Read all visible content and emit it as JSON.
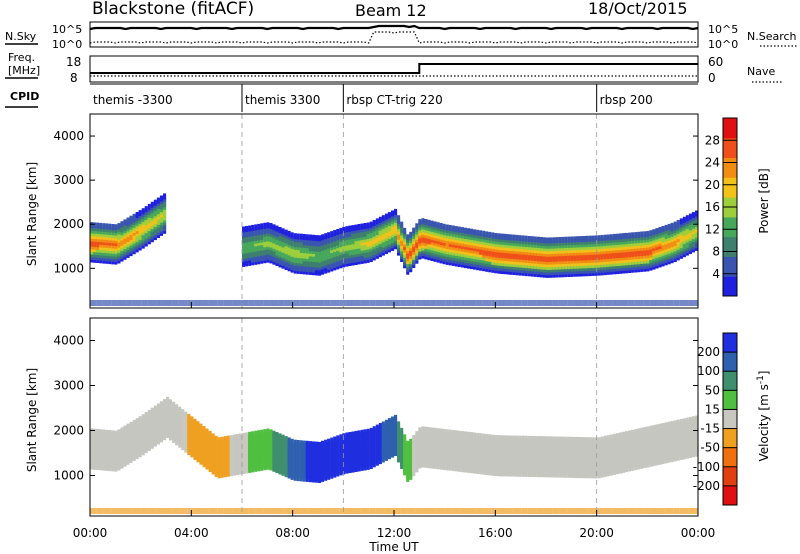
{
  "header": {
    "station": "Blackstone (fitACF)",
    "beam": "Beam 12",
    "date": "18/Oct/2015"
  },
  "noise_panel": {
    "left_label": "N.Sky",
    "right_label": "N.Search",
    "left_ticks": [
      "10^5",
      "10^0"
    ],
    "right_ticks": [
      "10^5",
      "10^0"
    ]
  },
  "freq_panel": {
    "left_label_line1": "Freq.",
    "left_label_line2": "[MHz]",
    "right_label": "Nave",
    "left_ticks": [
      "18",
      "8"
    ],
    "right_ticks": [
      "60",
      "0"
    ]
  },
  "cpid_panel": {
    "label": "CPID",
    "segments": [
      {
        "label": "themis -3300",
        "start_hour": 0
      },
      {
        "label": "themis 3300",
        "start_hour": 6
      },
      {
        "label": "rbsp CT-trig 220",
        "start_hour": 10
      },
      {
        "label": "rbsp 200",
        "start_hour": 20
      }
    ]
  },
  "x_axis": {
    "label": "Time UT",
    "ticks": [
      "00:00",
      "04:00",
      "08:00",
      "12:00",
      "16:00",
      "20:00",
      "00:00"
    ]
  },
  "colors": {
    "power_scale": [
      "#1f1fe0",
      "#3a55b0",
      "#3e7f6e",
      "#47a85c",
      "#9dcf3c",
      "#f2c21b",
      "#f28d14",
      "#ef4f1a",
      "#e01010"
    ],
    "velocity_scale": [
      "#1f2fe0",
      "#2f60b0",
      "#3f8f6f",
      "#4fbf3f",
      "#c8c8c0",
      "#f0a020",
      "#f07010",
      "#e04010",
      "#e01010"
    ],
    "ground_scatter": "#c6c6c0"
  },
  "chart_data": [
    {
      "type": "heatmap",
      "title": "",
      "xlabel": "Time UT",
      "ylabel": "Slant Range [km]",
      "xlim": [
        0,
        24
      ],
      "ylim": [
        100,
        4500
      ],
      "yticks": [
        1000,
        2000,
        3000,
        4000
      ],
      "grid": false,
      "colorbar": {
        "label": "Power [dB]",
        "range": [
          0,
          32
        ],
        "ticks": [
          4,
          8,
          12,
          16,
          20,
          24,
          28
        ]
      },
      "echo_band": {
        "x_hours": [
          0,
          1,
          2,
          3,
          4,
          5,
          6,
          7,
          8,
          9,
          10,
          11,
          12,
          12.5,
          13,
          14,
          16,
          18,
          20,
          22,
          23,
          24
        ],
        "center_km": [
          1600,
          1550,
          1900,
          2300,
          null,
          null,
          1500,
          1600,
          1350,
          1300,
          1500,
          1600,
          1900,
          1300,
          1700,
          1550,
          1350,
          1250,
          1300,
          1400,
          1600,
          1900
        ],
        "peak_power_db": [
          28,
          26,
          22,
          18,
          null,
          null,
          14,
          16,
          18,
          14,
          16,
          20,
          22,
          28,
          28,
          26,
          28,
          28,
          28,
          28,
          24,
          18
        ]
      },
      "dashed_markers_hours": [
        6,
        10,
        20
      ]
    },
    {
      "type": "heatmap",
      "title": "",
      "xlabel": "Time UT",
      "ylabel": "Slant Range [km]",
      "xlim": [
        0,
        24
      ],
      "ylim": [
        100,
        4500
      ],
      "yticks": [
        1000,
        2000,
        3000,
        4000
      ],
      "grid": false,
      "colorbar": {
        "label": "Velocity [m s^-1]",
        "tick_labels": [
          "200",
          "100",
          "50",
          "15",
          "-15",
          "-50",
          "-100",
          "-200"
        ]
      },
      "velocity_band": {
        "x_hours": [
          0,
          1,
          2,
          3,
          5,
          6,
          7,
          8,
          9,
          10,
          11,
          12,
          12.5,
          13,
          16,
          20,
          24
        ],
        "center_km": [
          1600,
          1550,
          1900,
          2300,
          1400,
          1500,
          1600,
          1350,
          1300,
          1500,
          1600,
          1900,
          1300,
          1650,
          1450,
          1400,
          1900
        ],
        "velocity_ms": [
          0,
          0,
          0,
          0,
          -60,
          20,
          60,
          150,
          200,
          220,
          200,
          150,
          40,
          0,
          0,
          0,
          0
        ]
      },
      "dashed_markers_hours": [
        6,
        10,
        20
      ]
    }
  ]
}
